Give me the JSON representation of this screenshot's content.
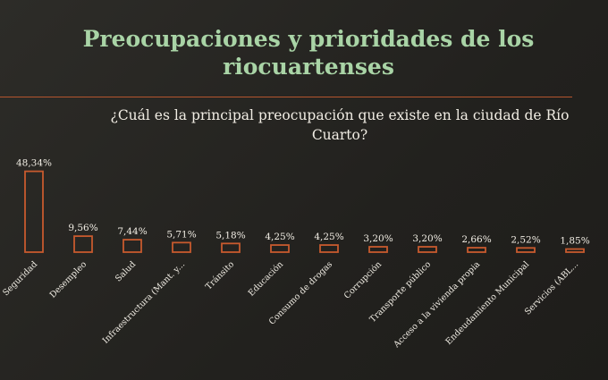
{
  "slide": {
    "title": "Preocupaciones y prioridades de los riocuartenses",
    "question_line1": "¿Cuál es la principal preocupación que existe en la ciudad de Río",
    "question_line2": "Cuarto?"
  },
  "colors": {
    "background": "#252420",
    "title": "#a9d4a6",
    "accent": "#c75a2e",
    "text": "#f1ede4"
  },
  "chart_data": {
    "type": "bar",
    "title": "",
    "xlabel": "",
    "ylabel": "",
    "ylim": [
      0,
      50
    ],
    "grid": false,
    "legend": "none",
    "categories": [
      "Seguridad",
      "Desempleo",
      "Salud",
      "Infraestructura (Mant. y...",
      "Tránsito",
      "Educación",
      "Consumo de drogas",
      "Corrupción",
      "Transporte público",
      "Acceso a la vivienda propia",
      "Endeudamiento Municipal",
      "Servicios (ABL..."
    ],
    "values": [
      48.34,
      9.56,
      7.44,
      5.71,
      5.18,
      4.25,
      4.25,
      3.2,
      3.2,
      2.66,
      2.52,
      1.85
    ],
    "data_labels": [
      "48,34%",
      "9,56%",
      "7,44%",
      "5,71%",
      "5,18%",
      "4,25%",
      "4,25%",
      "3,20%",
      "3,20%",
      "2,66%",
      "2,52%",
      "1,85%"
    ]
  }
}
